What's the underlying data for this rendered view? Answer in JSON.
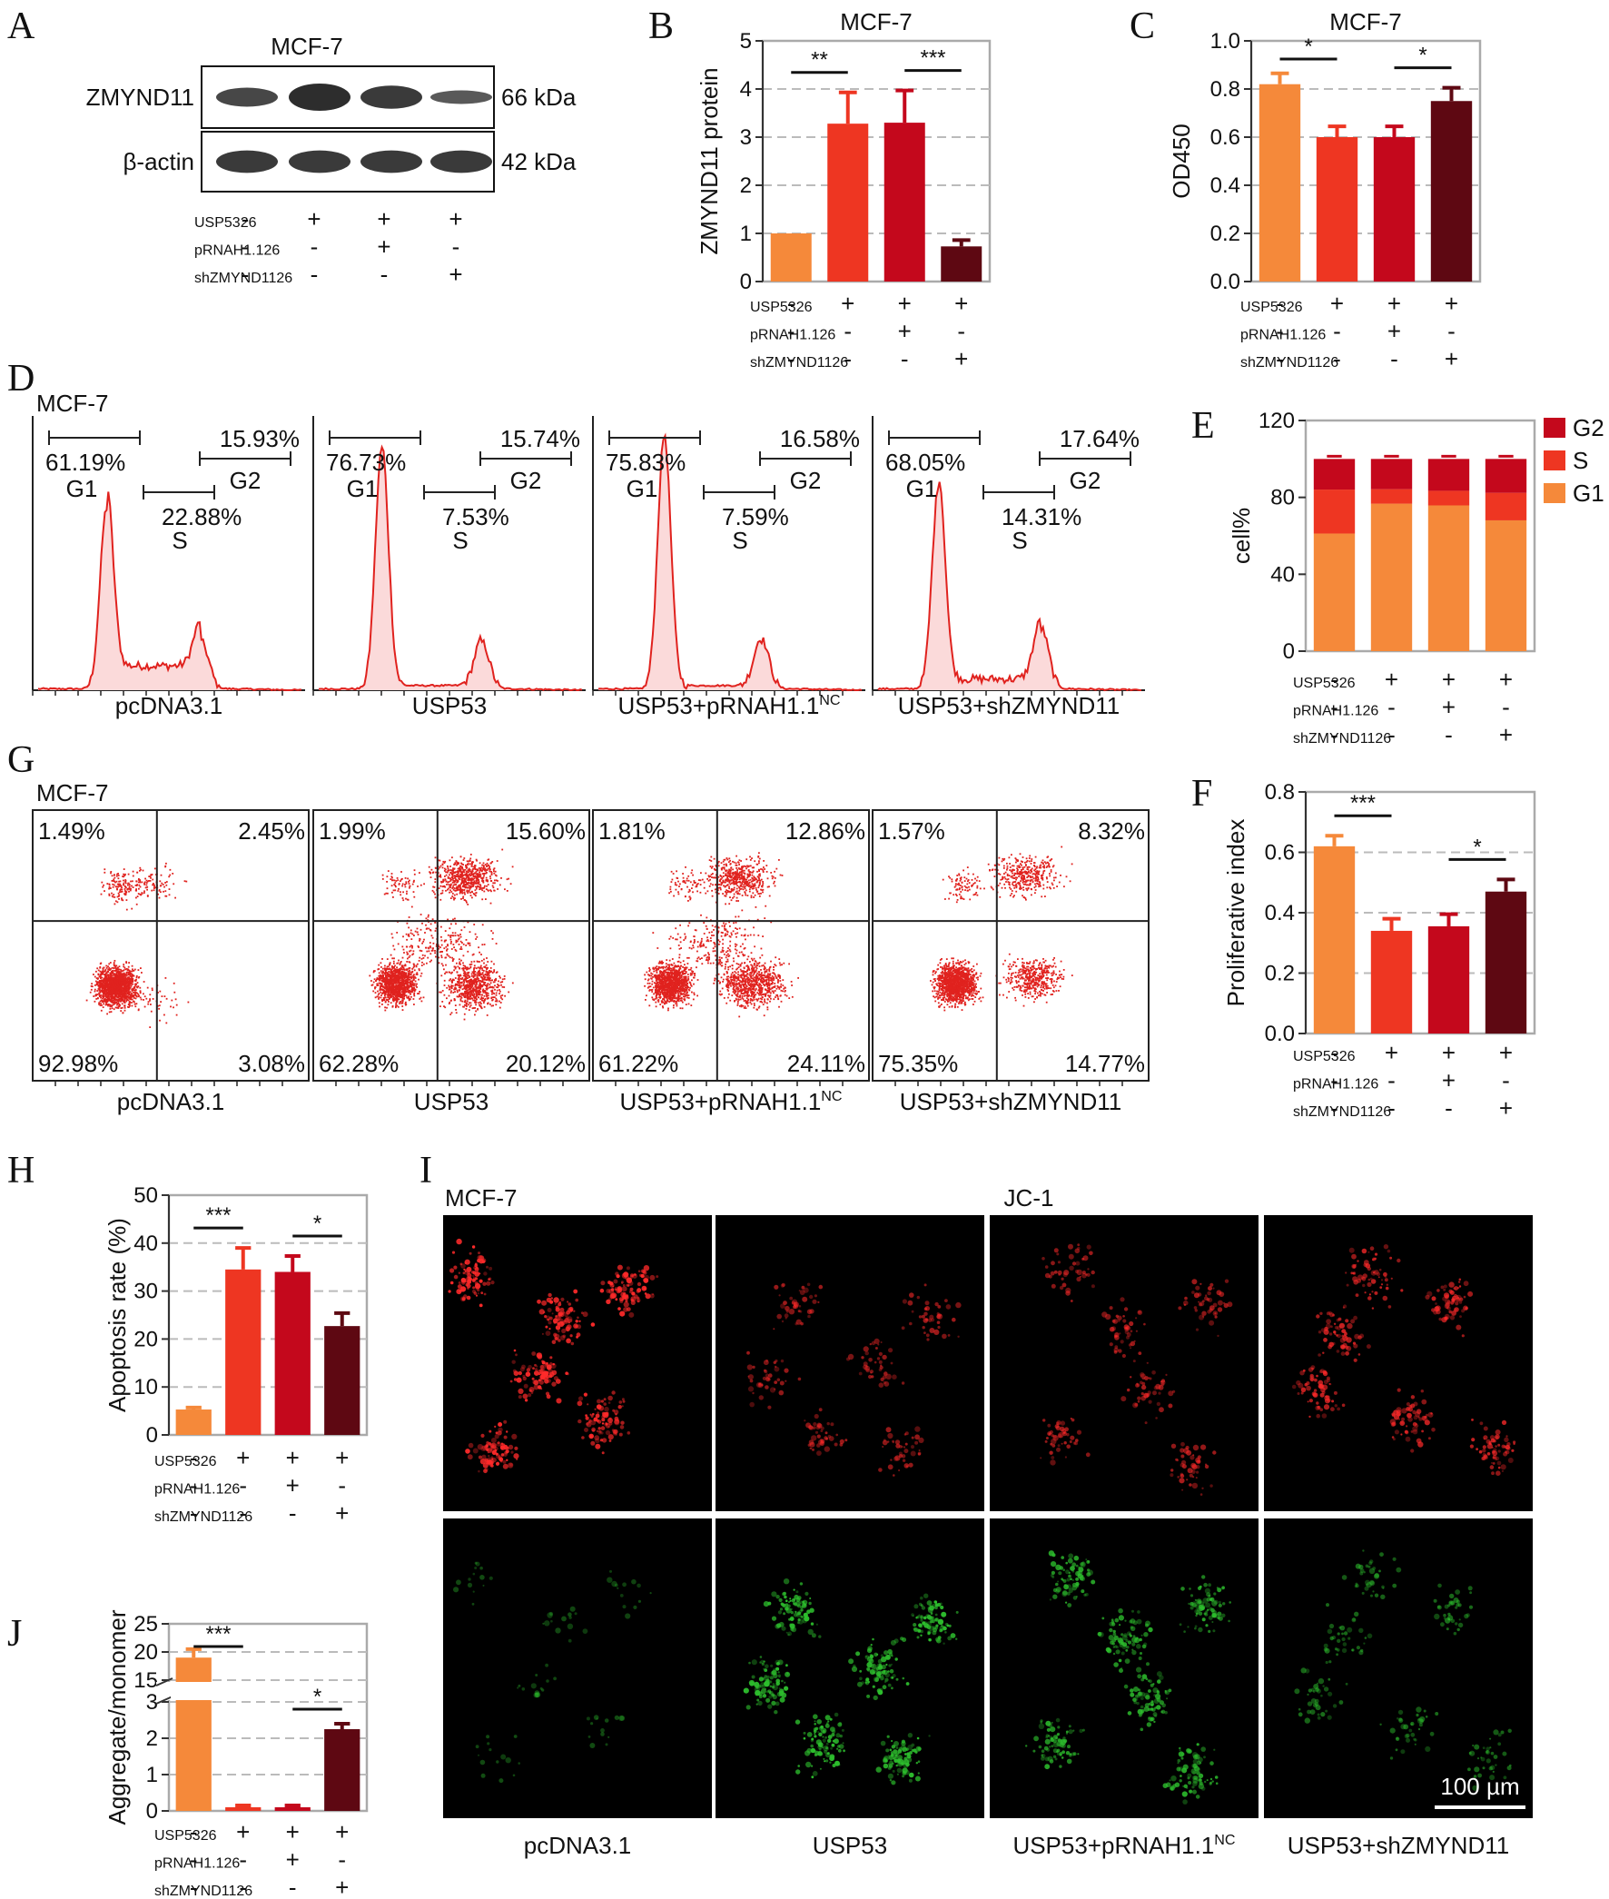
{
  "panels": {
    "A": "A",
    "B": "B",
    "C": "C",
    "D": "D",
    "E": "E",
    "F": "F",
    "G": "G",
    "H": "H",
    "I": "I",
    "J": "J"
  },
  "cell_line": "MCF-7",
  "treatment_labels": {
    "usp53": "USP53",
    "prnah": "pRNAH1.1",
    "prnah_sup": "NC",
    "shz": "shZMYND11"
  },
  "treatment_table": {
    "usp53": [
      "-",
      "+",
      "+",
      "+"
    ],
    "prnah": [
      "-",
      "-",
      "+",
      "-"
    ],
    "shz": [
      "-",
      "-",
      "-",
      "+"
    ]
  },
  "colors": {
    "g1_orange": "#F5893A",
    "red": "#EE3622",
    "crimson": "#C4081C",
    "maroon": "#5E0812",
    "flow_red": "#E0221E",
    "green": "#2DBE2D",
    "grid": "#bbbbbb"
  },
  "western": {
    "rows": [
      {
        "name": "ZMYND11",
        "kda": "66 kDa"
      },
      {
        "name": "β-actin",
        "kda": "42 kDa"
      }
    ]
  },
  "group_names": [
    "pcDNA3.1",
    "USP53",
    "USP53+pRNAH1.1",
    "USP53+shZMYND11"
  ],
  "group_sup": [
    "",
    "",
    "NC",
    ""
  ],
  "histograms": [
    {
      "g1": "61.19%",
      "g2": "15.93%",
      "s": "22.88%"
    },
    {
      "g1": "76.73%",
      "g2": "15.74%",
      "s": "7.53%"
    },
    {
      "g1": "75.83%",
      "g2": "16.58%",
      "s": "7.59%"
    },
    {
      "g1": "68.05%",
      "g2": "17.64%",
      "s": "14.31%"
    }
  ],
  "phase_labels": {
    "g1": "G1",
    "s": "S",
    "g2": "G2"
  },
  "scatter_quadrants": [
    {
      "ul": "1.49%",
      "ur": "2.45%",
      "ll": "92.98%",
      "lr": "3.08%"
    },
    {
      "ul": "1.99%",
      "ur": "15.60%",
      "ll": "62.28%",
      "lr": "20.12%"
    },
    {
      "ul": "1.81%",
      "ur": "12.86%",
      "ll": "61.22%",
      "lr": "24.11%"
    },
    {
      "ul": "1.57%",
      "ur": "8.32%",
      "ll": "75.35%",
      "lr": "14.77%"
    }
  ],
  "jc1": {
    "title": "JC-1",
    "scale_bar": "100 µm"
  },
  "chart_data": [
    {
      "panel": "B",
      "type": "bar",
      "title": "MCF-7",
      "ylabel": "ZMYND11 protein",
      "ylim": [
        0,
        5
      ],
      "yticks": [
        0,
        1,
        2,
        3,
        4,
        5
      ],
      "values": [
        1.0,
        3.28,
        3.3,
        0.73
      ],
      "errors": [
        0,
        0.65,
        0.67,
        0.13
      ],
      "significance": [
        {
          "pair": [
            0,
            1
          ],
          "label": "**"
        },
        {
          "pair": [
            2,
            3
          ],
          "label": "***"
        }
      ]
    },
    {
      "panel": "C",
      "type": "bar",
      "title": "MCF-7",
      "ylabel": "OD450",
      "ylim": [
        0,
        1.0
      ],
      "yticks": [
        0.0,
        0.2,
        0.4,
        0.6,
        0.8,
        1.0
      ],
      "values": [
        0.82,
        0.6,
        0.6,
        0.75
      ],
      "errors": [
        0.045,
        0.045,
        0.045,
        0.055
      ],
      "significance": [
        {
          "pair": [
            0,
            1
          ],
          "label": "*"
        },
        {
          "pair": [
            2,
            3
          ],
          "label": "*"
        }
      ]
    },
    {
      "panel": "E",
      "type": "bar",
      "stacked": true,
      "ylabel": "cell%",
      "ylim": [
        0,
        120
      ],
      "yticks": [
        0,
        40,
        80,
        120
      ],
      "legend": "top-right",
      "series": [
        {
          "name": "G1",
          "values": [
            61.19,
            76.73,
            75.83,
            68.05
          ]
        },
        {
          "name": "S",
          "values": [
            22.88,
            7.53,
            7.59,
            14.31
          ]
        },
        {
          "name": "G2",
          "values": [
            15.93,
            15.74,
            16.58,
            17.64
          ]
        }
      ]
    },
    {
      "panel": "F",
      "type": "bar",
      "ylabel": "Proliferative index",
      "ylim": [
        0,
        0.8
      ],
      "yticks": [
        0.0,
        0.2,
        0.4,
        0.6,
        0.8
      ],
      "values": [
        0.62,
        0.34,
        0.355,
        0.47
      ],
      "errors": [
        0.035,
        0.04,
        0.04,
        0.04
      ],
      "significance": [
        {
          "pair": [
            0,
            1
          ],
          "label": "***"
        },
        {
          "pair": [
            2,
            3
          ],
          "label": "*"
        }
      ]
    },
    {
      "panel": "H",
      "type": "bar",
      "ylabel": "Apoptosis rate (%)",
      "ylim": [
        0,
        50
      ],
      "yticks": [
        0,
        10,
        20,
        30,
        40,
        50
      ],
      "values": [
        5.3,
        34.5,
        34.0,
        22.7
      ],
      "errors": [
        0.4,
        4.5,
        3.3,
        2.7
      ],
      "significance": [
        {
          "pair": [
            0,
            1
          ],
          "label": "***"
        },
        {
          "pair": [
            2,
            3
          ],
          "label": "*"
        }
      ]
    },
    {
      "panel": "J",
      "type": "bar",
      "ylabel": "Aggregate/monomer",
      "broken_axis": true,
      "yticks": [
        0,
        1,
        2,
        3,
        15,
        20,
        25
      ],
      "values": [
        19.0,
        0.1,
        0.1,
        2.25
      ],
      "errors": [
        1.5,
        0.05,
        0.05,
        0.15
      ],
      "significance": [
        {
          "pair": [
            0,
            1
          ],
          "label": "***"
        },
        {
          "pair": [
            2,
            3
          ],
          "label": "*"
        }
      ]
    }
  ]
}
